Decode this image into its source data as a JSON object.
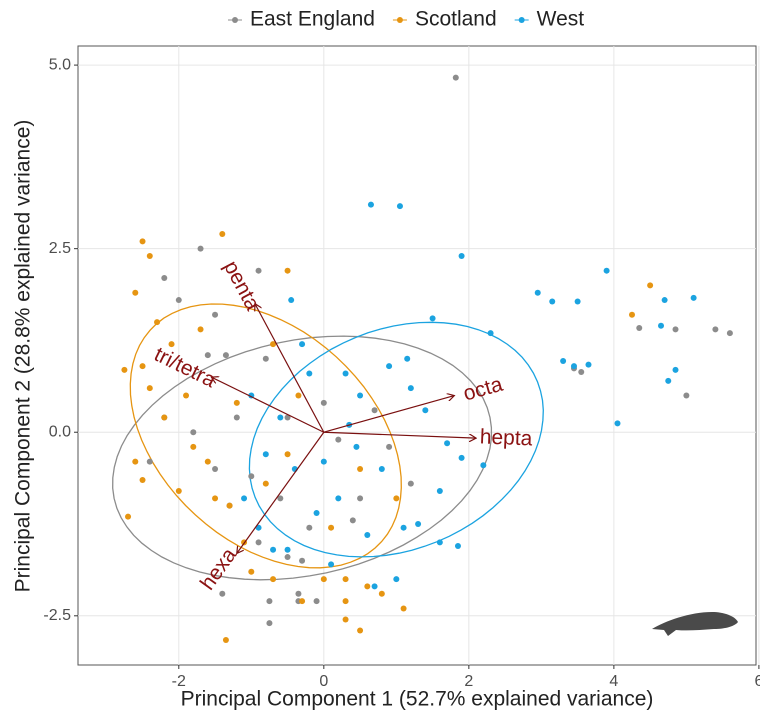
{
  "chart_data": {
    "type": "scatter",
    "xlabel": "Principal Component 1 (52.7% explained variance)",
    "ylabel": "Principal Component 2 (28.8% explained variance)",
    "xlim": [
      -3.39,
      5.96
    ],
    "ylim": [
      -3.17,
      5.26
    ],
    "xticks": [
      -2,
      0,
      2,
      4,
      6
    ],
    "yticks": [
      {
        "value": 5,
        "label": "5.0"
      },
      {
        "value": 2.5,
        "label": "2.5"
      },
      {
        "value": 0,
        "label": "0.0"
      },
      {
        "value": -2.5,
        "label": "-2.5"
      }
    ],
    "grid": true,
    "legend": "top",
    "series": [
      {
        "name": "East England",
        "color": "#8c8c8c",
        "x": [
          1.82,
          -1.7,
          -2.0,
          -2.2,
          -1.5,
          -1.6,
          -1.35,
          -0.8,
          -0.5,
          -1.0,
          -1.3,
          -0.9,
          -0.5,
          -0.3,
          -1.4,
          -0.75,
          -0.35,
          -0.1,
          -0.75,
          -0.35,
          4.35,
          4.85,
          5.4,
          5.6,
          5.0,
          3.45,
          3.55,
          0.2,
          0.5,
          0.9,
          0.0,
          -1.8,
          -2.2,
          -1.5,
          1.2,
          -0.2,
          0.4,
          -2.4,
          -1.2,
          -0.6,
          0.7,
          -0.9
        ],
        "values": [
          4.83,
          2.5,
          1.8,
          2.1,
          1.6,
          1.05,
          1.05,
          1.0,
          0.2,
          -0.6,
          -1.0,
          -1.5,
          -1.7,
          -1.75,
          -2.2,
          -2.3,
          -2.2,
          -2.3,
          -2.6,
          -2.3,
          1.42,
          1.4,
          1.4,
          1.35,
          0.5,
          0.87,
          0.82,
          -0.1,
          -0.9,
          -0.2,
          0.4,
          0.0,
          0.2,
          -0.5,
          -0.7,
          -1.3,
          -1.2,
          -0.4,
          0.2,
          -0.9,
          0.3,
          2.2
        ]
      },
      {
        "name": "Scotland",
        "color": "#e69512",
        "x": [
          -1.35,
          -2.5,
          -2.4,
          -1.4,
          -0.5,
          -2.6,
          -2.3,
          -2.1,
          -2.75,
          -2.5,
          -2.4,
          -2.2,
          -2.6,
          -2.7,
          -2.5,
          -1.8,
          -1.5,
          -1.6,
          -1.3,
          -1.1,
          -1.0,
          -0.7,
          0.0,
          -0.3,
          0.3,
          0.3,
          0.6,
          0.8,
          1.1,
          0.5,
          0.3,
          -0.5,
          0.5,
          -0.7,
          -1.7,
          -1.9,
          1.0,
          4.5,
          4.25,
          -0.35,
          -1.2,
          -2.0,
          0.1,
          -0.8
        ],
        "values": [
          -2.83,
          2.6,
          2.4,
          2.7,
          2.2,
          1.9,
          1.5,
          1.2,
          0.85,
          0.9,
          0.6,
          0.2,
          -0.4,
          -1.15,
          -0.65,
          -0.2,
          -0.9,
          -0.4,
          -1.0,
          -1.5,
          -1.9,
          -2.0,
          -2.0,
          -2.3,
          -2.0,
          -2.3,
          -2.1,
          -2.2,
          -2.4,
          -2.7,
          -2.55,
          -0.3,
          -0.5,
          1.2,
          1.4,
          0.5,
          -0.9,
          2.0,
          1.6,
          0.5,
          0.4,
          -0.8,
          -1.3,
          -0.7
        ]
      },
      {
        "name": "West",
        "color": "#1ba3e0",
        "x": [
          0.65,
          1.05,
          1.9,
          3.9,
          2.95,
          3.15,
          3.5,
          4.7,
          5.1,
          2.3,
          1.5,
          3.3,
          3.45,
          3.65,
          4.05,
          4.75,
          4.85,
          4.65,
          1.7,
          1.9,
          2.2,
          1.1,
          1.3,
          1.6,
          1.85,
          0.7,
          1.0,
          0.1,
          -0.5,
          -0.9,
          -0.2,
          0.3,
          0.5,
          0.8,
          0.2,
          -0.4,
          -0.6,
          -0.8,
          -0.1,
          0.6,
          1.2,
          1.4,
          -1.0,
          -0.3,
          0.45,
          0.9,
          1.6,
          -0.45,
          1.15,
          -0.7,
          0.35,
          0.0,
          -1.1
        ],
        "values": [
          3.1,
          3.08,
          2.4,
          2.2,
          1.9,
          1.78,
          1.78,
          1.8,
          1.83,
          1.35,
          1.55,
          0.97,
          0.9,
          0.92,
          0.12,
          0.7,
          0.85,
          1.45,
          -0.15,
          -0.35,
          -0.45,
          -1.3,
          -1.25,
          -1.5,
          -1.55,
          -2.1,
          -2.0,
          -1.8,
          -1.6,
          -1.3,
          0.8,
          0.8,
          0.5,
          -0.5,
          -0.9,
          -0.5,
          0.2,
          -0.3,
          -1.1,
          -1.4,
          0.6,
          0.3,
          0.5,
          1.2,
          -0.2,
          0.9,
          -0.8,
          1.8,
          1.0,
          -1.6,
          0.1,
          -0.4,
          -0.9
        ]
      }
    ],
    "ellipses": [
      {
        "series": "East England",
        "cx": -0.3,
        "cy": -0.35,
        "rx": 2.65,
        "ry": 1.6,
        "angle": 12
      },
      {
        "series": "Scotland",
        "cx": -0.8,
        "cy": -0.05,
        "rx": 2.15,
        "ry": 1.45,
        "angle": -42
      },
      {
        "series": "West",
        "cx": 1.0,
        "cy": -0.1,
        "rx": 2.1,
        "ry": 1.5,
        "angle": 22
      }
    ],
    "arrows": [
      {
        "name": "penta",
        "x": -0.95,
        "y": 1.75
      },
      {
        "name": "tri/tetra",
        "x": -1.55,
        "y": 0.75
      },
      {
        "name": "octa",
        "x": 1.8,
        "y": 0.5
      },
      {
        "name": "hepta",
        "x": 2.1,
        "y": -0.08
      },
      {
        "name": "hexa",
        "x": -1.2,
        "y": -1.65
      }
    ]
  }
}
